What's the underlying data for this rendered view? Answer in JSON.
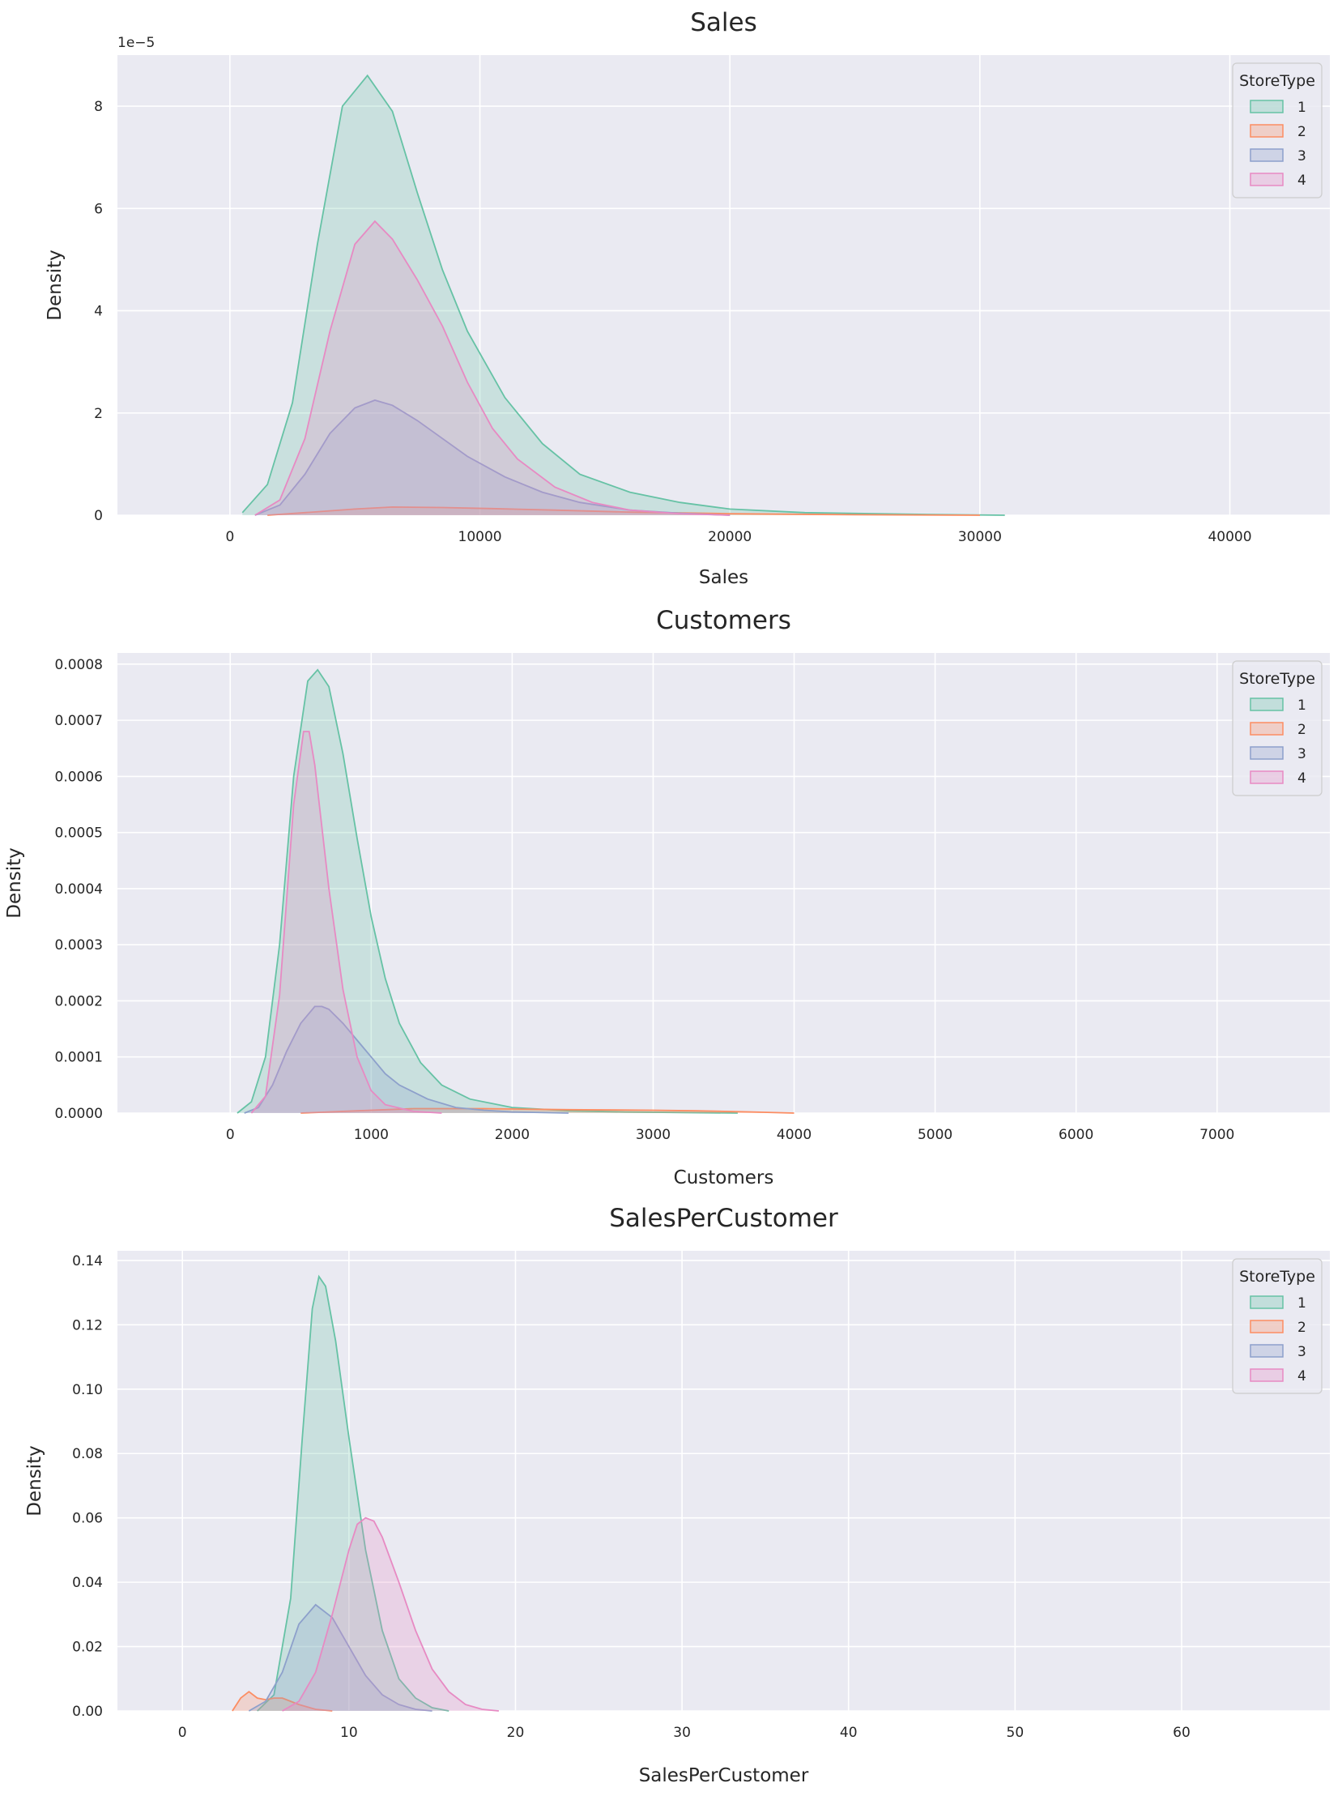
{
  "style": {
    "plot_bg": "#eaeaf2",
    "grid": "#ffffff",
    "palette": {
      "1": "#66c2a5",
      "2": "#fc8d62",
      "3": "#8da0cb",
      "4": "#e78ac3"
    }
  },
  "chart_data": [
    {
      "type": "area",
      "kind": "kde",
      "title": "Sales",
      "xlabel": "Sales",
      "ylabel": "Density",
      "offset_label": "1e−5",
      "xlim": [
        -4500,
        44000
      ],
      "ylim": [
        0,
        9.0
      ],
      "xticks": [
        0,
        10000,
        20000,
        30000,
        40000
      ],
      "xtick_labels": [
        "0",
        "10000",
        "20000",
        "30000",
        "40000"
      ],
      "yticks": [
        0,
        2,
        4,
        6,
        8
      ],
      "ytick_labels": [
        "0",
        "2",
        "4",
        "6",
        "8"
      ],
      "grid": true,
      "legend": {
        "title": "StoreType",
        "position": "top-right",
        "labels": [
          "1",
          "2",
          "3",
          "4"
        ]
      },
      "series": [
        {
          "name": "1",
          "x": [
            500,
            1500,
            2500,
            3500,
            4500,
            5500,
            6500,
            7500,
            8500,
            9500,
            11000,
            12500,
            14000,
            16000,
            18000,
            20000,
            23000,
            27000,
            31000
          ],
          "y": [
            0.05,
            0.6,
            2.2,
            5.3,
            8.0,
            8.6,
            7.9,
            6.3,
            4.8,
            3.6,
            2.3,
            1.4,
            0.8,
            0.45,
            0.25,
            0.12,
            0.05,
            0.02,
            0
          ]
        },
        {
          "name": "2",
          "x": [
            1500,
            3000,
            5000,
            6500,
            8500,
            10500,
            13000,
            16000,
            20000,
            25000,
            30000
          ],
          "y": [
            0,
            0.05,
            0.12,
            0.16,
            0.15,
            0.13,
            0.1,
            0.06,
            0.03,
            0.01,
            0
          ]
        },
        {
          "name": "3",
          "x": [
            1000,
            2000,
            3000,
            4000,
            5000,
            5800,
            6500,
            7500,
            8500,
            9500,
            11000,
            12500,
            14000,
            16000,
            18000,
            20000
          ],
          "y": [
            0,
            0.2,
            0.8,
            1.6,
            2.1,
            2.25,
            2.15,
            1.85,
            1.5,
            1.15,
            0.75,
            0.45,
            0.25,
            0.1,
            0.04,
            0
          ]
        },
        {
          "name": "4",
          "x": [
            1000,
            2000,
            3000,
            4000,
            5000,
            5800,
            6500,
            7500,
            8500,
            9500,
            10500,
            11500,
            13000,
            14500,
            16000,
            18000,
            20000
          ],
          "y": [
            0,
            0.3,
            1.5,
            3.6,
            5.3,
            5.75,
            5.4,
            4.6,
            3.7,
            2.6,
            1.7,
            1.1,
            0.55,
            0.25,
            0.1,
            0.03,
            0
          ]
        }
      ]
    },
    {
      "type": "area",
      "kind": "kde",
      "title": "Customers",
      "xlabel": "Customers",
      "ylabel": "Density",
      "xlim": [
        -800,
        7800
      ],
      "ylim": [
        0,
        0.00082
      ],
      "xticks": [
        0,
        1000,
        2000,
        3000,
        4000,
        5000,
        6000,
        7000
      ],
      "xtick_labels": [
        "0",
        "1000",
        "2000",
        "3000",
        "4000",
        "5000",
        "6000",
        "7000"
      ],
      "yticks": [
        0,
        0.0001,
        0.0002,
        0.0003,
        0.0004,
        0.0005,
        0.0006,
        0.0007,
        0.0008
      ],
      "ytick_labels": [
        "0.0000",
        "0.0001",
        "0.0002",
        "0.0003",
        "0.0004",
        "0.0005",
        "0.0006",
        "0.0007",
        "0.0008"
      ],
      "grid": true,
      "legend": {
        "title": "StoreType",
        "position": "top-right",
        "labels": [
          "1",
          "2",
          "3",
          "4"
        ]
      },
      "series": [
        {
          "name": "1",
          "x": [
            50,
            150,
            250,
            350,
            450,
            550,
            620,
            700,
            800,
            900,
            1000,
            1100,
            1200,
            1350,
            1500,
            1700,
            2000,
            2400,
            2800,
            3200,
            3600
          ],
          "y": [
            0,
            2e-05,
            0.0001,
            0.0003,
            0.0006,
            0.00077,
            0.00079,
            0.00076,
            0.00064,
            0.00049,
            0.00035,
            0.00024,
            0.00016,
            9e-05,
            5e-05,
            2.5e-05,
            1e-05,
            4e-06,
            2e-06,
            1e-06,
            0
          ]
        },
        {
          "name": "2",
          "x": [
            500,
            900,
            1300,
            1800,
            2400,
            3000,
            3300,
            3700,
            4000
          ],
          "y": [
            0,
            4e-06,
            8e-06,
            8e-06,
            6e-06,
            5e-06,
            4e-06,
            2e-06,
            0
          ]
        },
        {
          "name": "3",
          "x": [
            100,
            200,
            300,
            400,
            500,
            600,
            650,
            700,
            800,
            900,
            1000,
            1100,
            1200,
            1400,
            1600,
            1800,
            2000,
            2400
          ],
          "y": [
            0,
            1e-05,
            5e-05,
            0.00011,
            0.00016,
            0.00019,
            0.00019,
            0.000185,
            0.00016,
            0.00013,
            0.0001,
            7e-05,
            5e-05,
            2.5e-05,
            1e-05,
            5e-06,
            2e-06,
            0
          ]
        },
        {
          "name": "4",
          "x": [
            150,
            250,
            350,
            450,
            520,
            560,
            600,
            650,
            700,
            800,
            900,
            1000,
            1100,
            1300,
            1500
          ],
          "y": [
            0,
            3e-05,
            0.00021,
            0.00055,
            0.00068,
            0.00068,
            0.00062,
            0.00051,
            0.0004,
            0.00022,
            0.0001,
            4e-05,
            1.5e-05,
            3e-06,
            0
          ]
        }
      ]
    },
    {
      "type": "area",
      "kind": "kde",
      "title": "SalesPerCustomer",
      "xlabel": "SalesPerCustomer",
      "ylabel": "Density",
      "xlim": [
        -3.9,
        68.9
      ],
      "ylim": [
        0,
        0.143
      ],
      "xticks": [
        0,
        10,
        20,
        30,
        40,
        50,
        60
      ],
      "xtick_labels": [
        "0",
        "10",
        "20",
        "30",
        "40",
        "50",
        "60"
      ],
      "yticks": [
        0,
        0.02,
        0.04,
        0.06,
        0.08,
        0.1,
        0.12,
        0.14
      ],
      "ytick_labels": [
        "0.00",
        "0.02",
        "0.04",
        "0.06",
        "0.08",
        "0.10",
        "0.12",
        "0.14"
      ],
      "grid": true,
      "legend": {
        "title": "StoreType",
        "position": "top-right",
        "labels": [
          "1",
          "2",
          "3",
          "4"
        ]
      },
      "series": [
        {
          "name": "1",
          "x": [
            4.5,
            5.5,
            6.5,
            7.2,
            7.8,
            8.2,
            8.6,
            9.2,
            10,
            11,
            12,
            13,
            14,
            15,
            16
          ],
          "y": [
            0,
            0.005,
            0.035,
            0.085,
            0.125,
            0.135,
            0.132,
            0.115,
            0.085,
            0.05,
            0.025,
            0.01,
            0.004,
            0.001,
            0
          ]
        },
        {
          "name": "2",
          "x": [
            3,
            3.5,
            4,
            4.5,
            5,
            5.5,
            6,
            6.5,
            7,
            8,
            9
          ],
          "y": [
            0,
            0.004,
            0.006,
            0.004,
            0.0035,
            0.004,
            0.004,
            0.003,
            0.002,
            0.0005,
            0
          ]
        },
        {
          "name": "3",
          "x": [
            4,
            5,
            6,
            7,
            8,
            9,
            10,
            11,
            12,
            13,
            14,
            15
          ],
          "y": [
            0,
            0.003,
            0.012,
            0.027,
            0.033,
            0.029,
            0.02,
            0.011,
            0.005,
            0.002,
            0.0005,
            0
          ]
        },
        {
          "name": "4",
          "x": [
            6,
            7,
            8,
            9,
            10,
            10.5,
            11,
            11.5,
            12,
            13,
            14,
            15,
            16,
            17,
            18,
            19
          ],
          "y": [
            0,
            0.003,
            0.012,
            0.03,
            0.05,
            0.058,
            0.06,
            0.059,
            0.054,
            0.04,
            0.025,
            0.013,
            0.006,
            0.002,
            0.0005,
            0
          ]
        }
      ]
    }
  ]
}
